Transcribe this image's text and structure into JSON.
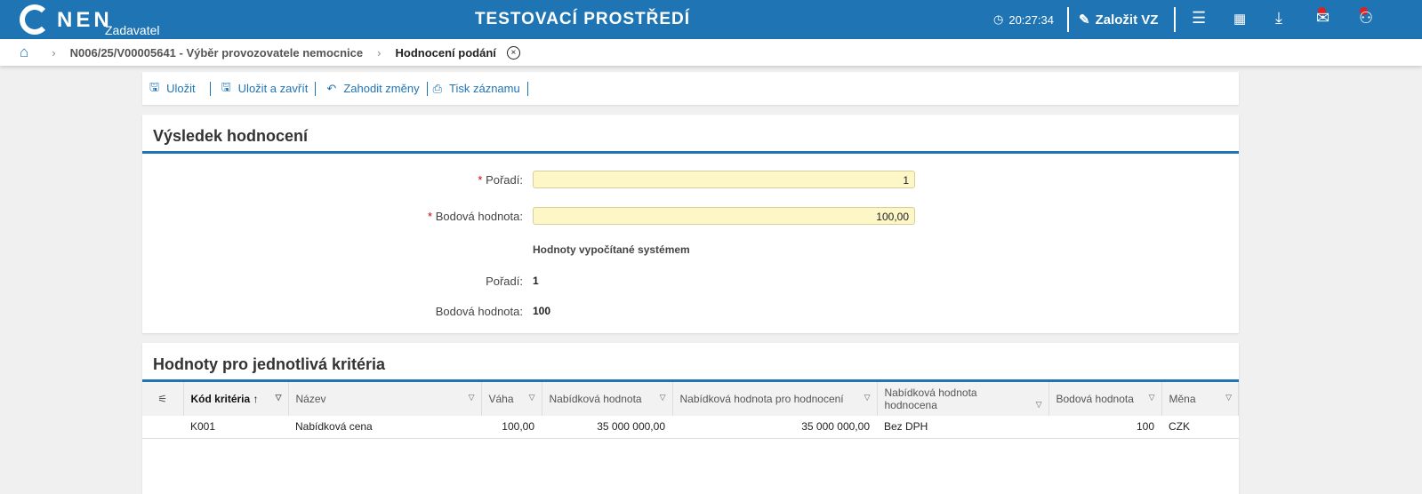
{
  "header": {
    "logo": "NEN",
    "role": "Zadavatel",
    "title": "TESTOVACÍ PROSTŘEDÍ",
    "time": "20:27:34",
    "create_label": "Založit VZ"
  },
  "breadcrumb": {
    "items": [
      "N006/25/V00005641 - Výběr provozovatele nemocnice",
      "Hodnocení podání"
    ]
  },
  "toolbar": {
    "save": "Uložit",
    "save_close": "Uložit a zavřít",
    "discard": "Zahodit změny",
    "print": "Tisk záznamu"
  },
  "result": {
    "title": "Výsledek hodnocení",
    "poradi_label": "Pořadí:",
    "poradi_value": "1",
    "bodova_label": "Bodová hodnota:",
    "bodova_value": "100,00",
    "system_title": "Hodnoty vypočítané systémem",
    "sys_poradi_label": "Pořadí:",
    "sys_poradi_value": "1",
    "sys_bodova_label": "Bodová hodnota:",
    "sys_bodova_value": "100"
  },
  "criteria": {
    "title": "Hodnoty pro jednotlivá kritéria",
    "columns": [
      "Kód kritéria",
      "Název",
      "Váha",
      "Nabídková hodnota",
      "Nabídková hodnota pro hodnocení",
      "Nabídková hodnota hodnocena",
      "Bodová hodnota",
      "Měna"
    ],
    "rows": [
      [
        "K001",
        "Nabídková cena",
        "100,00",
        "35 000 000,00",
        "35 000 000,00",
        "Bez DPH",
        "100",
        "CZK"
      ]
    ]
  }
}
